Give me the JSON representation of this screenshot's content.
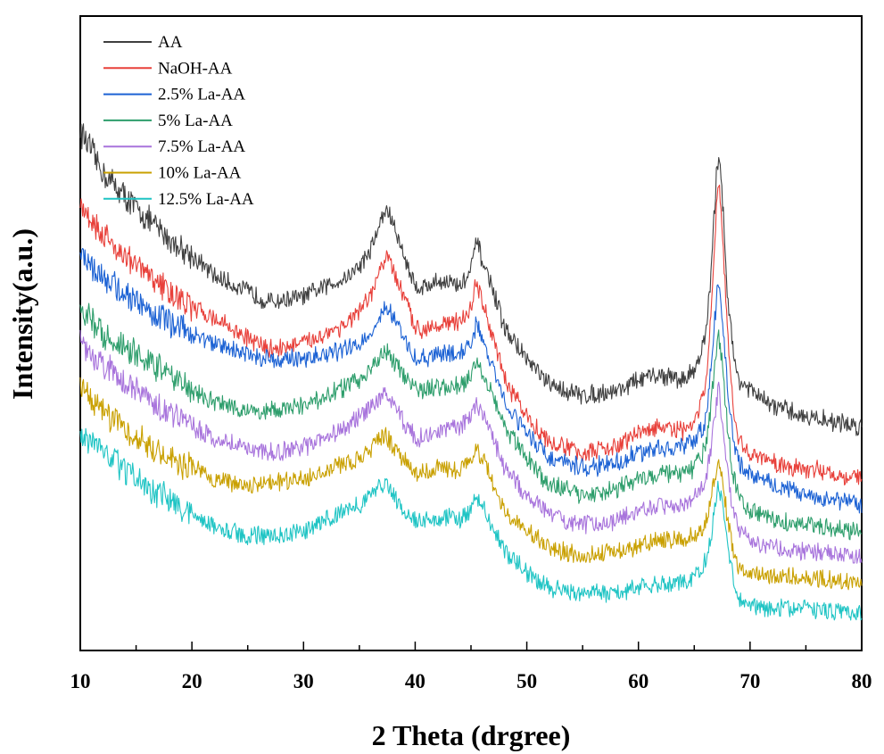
{
  "chart_data": {
    "type": "line",
    "title": "",
    "xlabel": "2 Theta (drgree)",
    "ylabel": "Intensity(a.u.)",
    "xlim": [
      10,
      80
    ],
    "xticks": [
      10,
      20,
      30,
      40,
      50,
      60,
      70,
      80
    ],
    "y_ticks_labeled": false,
    "legend_position": "top-left",
    "grid": false,
    "peaks_2theta": [
      37.5,
      45.5,
      67.2
    ],
    "series": [
      {
        "name": "AA",
        "color": "#3f3f3f",
        "x": [
          10,
          12,
          15,
          18,
          20,
          22,
          25,
          27,
          30,
          32,
          34,
          35,
          36,
          37,
          37.5,
          38,
          39,
          40,
          41,
          42,
          43,
          44,
          45,
          45.5,
          46,
          47,
          48,
          50,
          52,
          55,
          58,
          60,
          62,
          64,
          65,
          66,
          66.5,
          67,
          67.2,
          67.5,
          68,
          68.5,
          69,
          70,
          72,
          75,
          80
        ],
        "y": [
          88,
          80,
          73,
          67,
          64,
          60,
          57,
          55,
          56,
          58,
          60,
          62,
          65,
          71,
          73,
          70,
          64,
          58,
          58,
          59,
          59,
          58,
          61,
          67,
          63,
          57,
          50,
          44,
          39,
          37,
          38,
          40,
          41,
          40,
          42,
          48,
          60,
          80,
          84,
          76,
          56,
          45,
          40,
          38,
          35,
          33,
          31
        ]
      },
      {
        "name": "NaOH-AA",
        "color": "#e8403a",
        "x": [
          10,
          12,
          15,
          18,
          20,
          22,
          25,
          27,
          30,
          32,
          34,
          35,
          36,
          37,
          37.5,
          38,
          39,
          40,
          41,
          42,
          43,
          44,
          45,
          45.5,
          46,
          47,
          48,
          50,
          52,
          55,
          58,
          60,
          62,
          64,
          65,
          66,
          66.5,
          67,
          67.2,
          67.5,
          68,
          68.5,
          69,
          70,
          72,
          75,
          80
        ],
        "y": [
          74,
          68,
          62,
          57,
          54,
          52,
          48,
          46,
          47,
          49,
          51,
          53,
          56,
          62,
          64,
          61,
          56,
          50,
          50,
          51,
          51,
          51,
          54,
          59,
          55,
          48,
          40,
          33,
          28,
          26,
          27,
          30,
          31,
          30,
          32,
          38,
          52,
          74,
          78,
          69,
          48,
          34,
          28,
          26,
          24,
          23,
          21
        ]
      },
      {
        "name": "2.5% La-AA",
        "color": "#1c62d4",
        "x": [
          10,
          12,
          15,
          18,
          20,
          22,
          25,
          27,
          30,
          32,
          34,
          35,
          36,
          37,
          37.5,
          38,
          39,
          40,
          41,
          42,
          43,
          44,
          45,
          45.5,
          46,
          47,
          48,
          50,
          52,
          55,
          58,
          60,
          62,
          64,
          65,
          66,
          66.5,
          67,
          67.2,
          67.5,
          68,
          68.5,
          69,
          70,
          72,
          75,
          80
        ],
        "y": [
          64,
          60,
          55,
          51,
          49,
          47,
          45,
          44,
          44,
          45,
          46,
          47,
          49,
          53,
          54,
          52,
          48,
          44,
          44,
          45,
          45,
          45,
          47,
          51,
          48,
          42,
          36,
          30,
          25,
          23,
          24,
          26,
          27,
          27,
          28,
          32,
          42,
          56,
          59,
          52,
          38,
          29,
          24,
          22,
          20,
          18,
          16
        ]
      },
      {
        "name": "5% La-AA",
        "color": "#2e9e6c",
        "x": [
          10,
          12,
          15,
          18,
          20,
          22,
          25,
          27,
          30,
          32,
          34,
          35,
          36,
          37,
          37.5,
          38,
          39,
          40,
          41,
          42,
          43,
          44,
          45,
          45.5,
          46,
          47,
          48,
          50,
          52,
          55,
          58,
          60,
          62,
          64,
          65,
          66,
          66.5,
          67,
          67.2,
          67.5,
          68,
          68.5,
          69,
          70,
          72,
          75,
          80
        ],
        "y": [
          54,
          49,
          45,
          41,
          38,
          36,
          34,
          34,
          35,
          37,
          39,
          40,
          42,
          45,
          46,
          44,
          41,
          38,
          38,
          39,
          39,
          39,
          41,
          44,
          42,
          37,
          31,
          25,
          20,
          18,
          19,
          21,
          22,
          22,
          23,
          27,
          35,
          46,
          49,
          43,
          30,
          22,
          17,
          15,
          13,
          12,
          11
        ]
      },
      {
        "name": "7.5% La-AA",
        "color": "#a874dc",
        "x": [
          10,
          12,
          15,
          18,
          20,
          22,
          25,
          27,
          30,
          32,
          34,
          35,
          36,
          37,
          37.5,
          38,
          39,
          40,
          41,
          42,
          43,
          44,
          45,
          45.5,
          46,
          47,
          48,
          50,
          52,
          55,
          58,
          60,
          62,
          64,
          65,
          66,
          66.5,
          67,
          67.2,
          67.5,
          68,
          68.5,
          69,
          70,
          72,
          75,
          80
        ],
        "y": [
          47,
          43,
          38,
          34,
          31,
          29,
          27,
          26,
          27,
          29,
          31,
          33,
          35,
          37,
          37,
          35,
          32,
          29,
          29,
          30,
          31,
          31,
          33,
          35,
          34,
          29,
          23,
          18,
          14,
          12,
          13,
          15,
          16,
          16,
          17,
          20,
          27,
          36,
          38,
          33,
          22,
          15,
          11,
          9,
          8,
          7,
          6
        ]
      },
      {
        "name": "10% La-AA",
        "color": "#c9a000",
        "x": [
          10,
          12,
          15,
          18,
          20,
          22,
          25,
          27,
          30,
          32,
          34,
          35,
          36,
          37,
          37.5,
          38,
          39,
          40,
          41,
          42,
          43,
          44,
          45,
          45.5,
          46,
          47,
          48,
          50,
          52,
          55,
          58,
          60,
          62,
          64,
          65,
          66,
          66.5,
          67,
          67.2,
          67.5,
          68,
          68.5,
          69,
          70,
          72,
          75,
          80
        ],
        "y": [
          39,
          34,
          29,
          25,
          23,
          21,
          20,
          20,
          21,
          23,
          24,
          25,
          27,
          29,
          29,
          27,
          25,
          22,
          22,
          23,
          23,
          23,
          24,
          27,
          25,
          20,
          15,
          11,
          8,
          6,
          7,
          8,
          9,
          9,
          10,
          12,
          17,
          23,
          25,
          21,
          13,
          7,
          4,
          3,
          2,
          2,
          1
        ]
      },
      {
        "name": "12.5% La-AA",
        "color": "#1fc4c4",
        "x": [
          10,
          12,
          15,
          18,
          20,
          22,
          25,
          27,
          30,
          32,
          34,
          35,
          36,
          37,
          37.5,
          38,
          39,
          40,
          41,
          42,
          43,
          44,
          45,
          45.5,
          46,
          47,
          48,
          50,
          52,
          55,
          58,
          60,
          62,
          64,
          65,
          66,
          66.5,
          67,
          67.2,
          67.5,
          68,
          68.5,
          69,
          70,
          72,
          75,
          80
        ],
        "y": [
          30,
          26,
          21,
          17,
          14,
          12,
          10,
          10,
          11,
          13,
          15,
          16,
          18,
          20,
          20,
          18,
          15,
          13,
          13,
          13,
          14,
          13,
          15,
          18,
          16,
          12,
          7,
          3,
          0,
          -1,
          -1,
          0,
          1,
          1,
          2,
          5,
          10,
          18,
          20,
          16,
          8,
          2,
          -2,
          -3,
          -4,
          -4,
          -5
        ]
      }
    ]
  }
}
